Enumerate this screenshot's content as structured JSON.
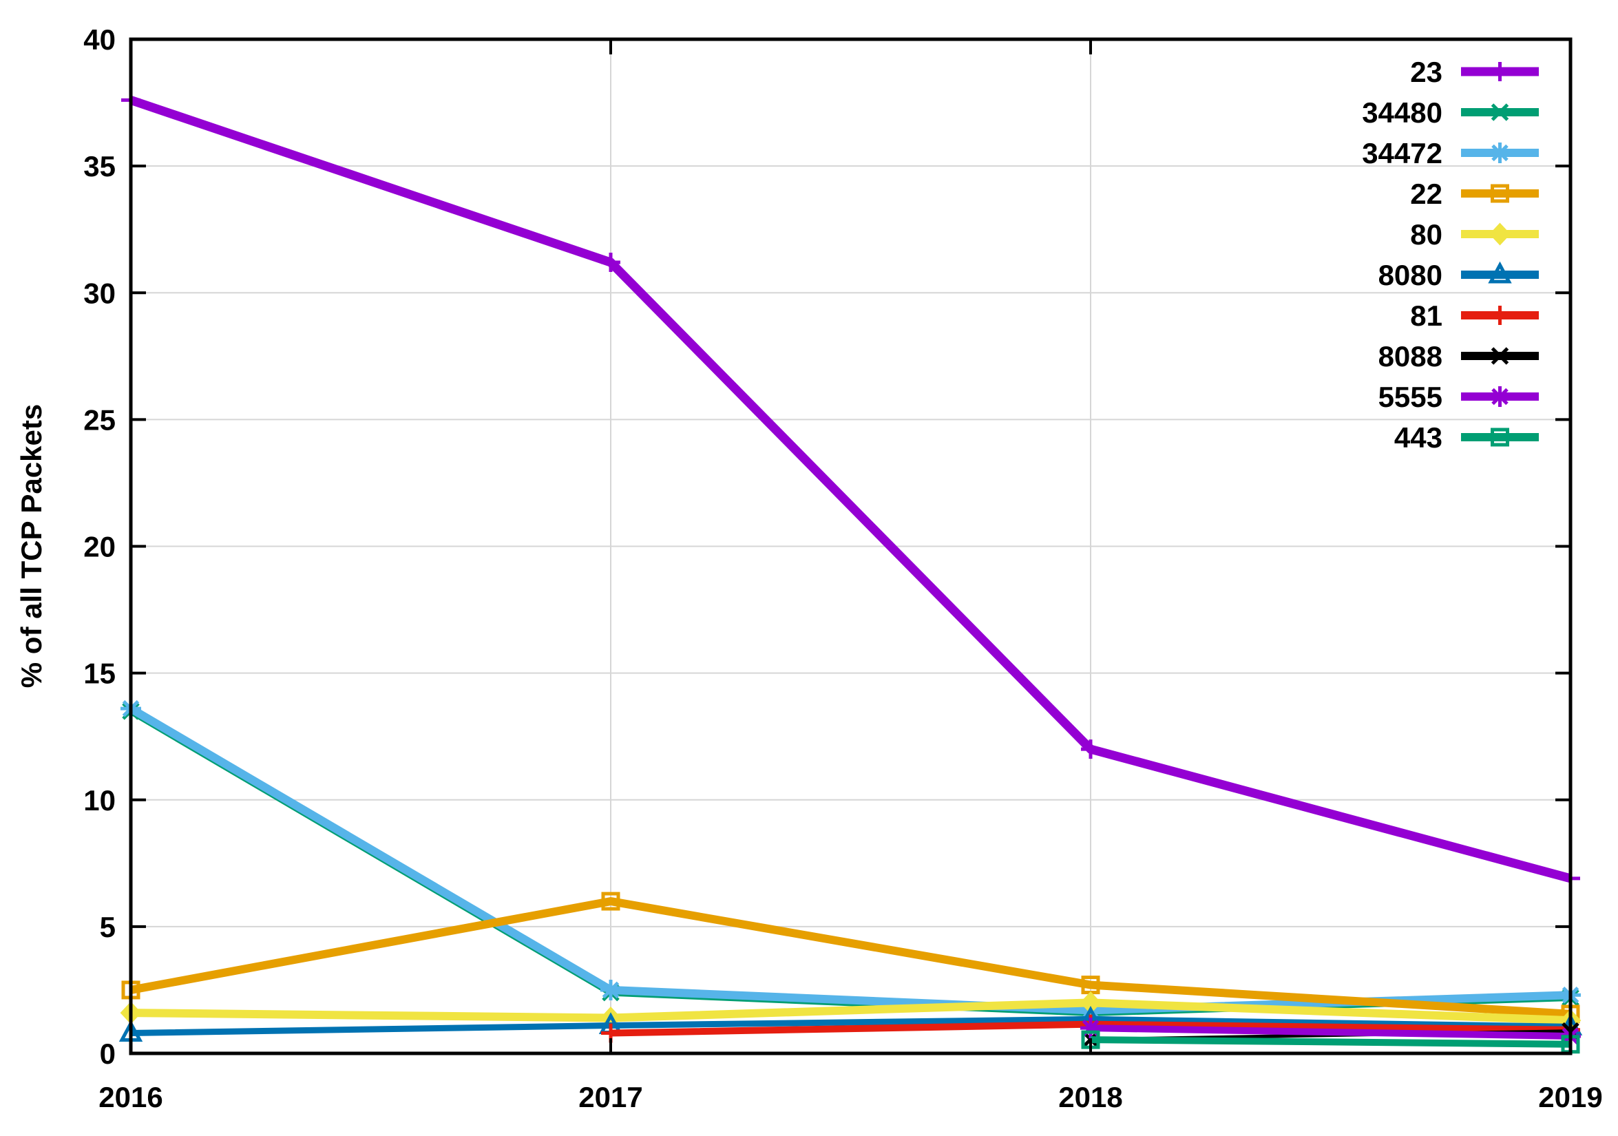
{
  "chart_data": {
    "type": "line",
    "title": "",
    "xlabel": "",
    "ylabel": "% of all TCP Packets",
    "x": [
      2016,
      2017,
      2018,
      2019
    ],
    "xlim": [
      2016,
      2019
    ],
    "ylim": [
      0,
      40
    ],
    "xticks": [
      2016,
      2017,
      2018,
      2019
    ],
    "yticks": [
      0,
      5,
      10,
      15,
      20,
      25,
      30,
      35,
      40
    ],
    "grid": true,
    "legend_position": "top-right-inside",
    "grid_color": "#d6d6d6",
    "frame_color": "#000000",
    "series": [
      {
        "name": "23",
        "color": "#9400d3",
        "marker": "plus",
        "line_width": 13,
        "values": [
          37.6,
          31.2,
          12.0,
          6.9
        ]
      },
      {
        "name": "34480",
        "color": "#009e73",
        "marker": "cross",
        "line_width": 10,
        "values": [
          13.5,
          2.4,
          1.6,
          2.2
        ]
      },
      {
        "name": "34472",
        "color": "#56b4e9",
        "marker": "asterisk",
        "line_width": 12,
        "values": [
          13.6,
          2.5,
          1.7,
          2.3
        ]
      },
      {
        "name": "22",
        "color": "#e69f00",
        "marker": "square-open",
        "line_width": 12,
        "values": [
          2.5,
          6.0,
          2.7,
          1.55
        ]
      },
      {
        "name": "80",
        "color": "#f0e442",
        "marker": "diamond-filled",
        "line_width": 12,
        "values": [
          1.6,
          1.4,
          2.0,
          1.3
        ]
      },
      {
        "name": "8080",
        "color": "#0072b2",
        "marker": "triangle-open",
        "line_width": 9,
        "values": [
          0.8,
          1.1,
          1.35,
          1.05
        ]
      },
      {
        "name": "81",
        "color": "#e51e10",
        "marker": "plus",
        "line_width": 10,
        "values": [
          null,
          0.8,
          1.15,
          0.93
        ]
      },
      {
        "name": "8088",
        "color": "#000000",
        "marker": "cross",
        "line_width": 5,
        "values": [
          null,
          null,
          0.55,
          0.88
        ]
      },
      {
        "name": "5555",
        "color": "#9400d3",
        "marker": "asterisk",
        "line_width": 10,
        "values": [
          null,
          null,
          1.0,
          0.68
        ]
      },
      {
        "name": "443",
        "color": "#009e73",
        "marker": "square-open",
        "line_width": 10,
        "values": [
          null,
          null,
          0.54,
          0.36
        ]
      }
    ]
  }
}
